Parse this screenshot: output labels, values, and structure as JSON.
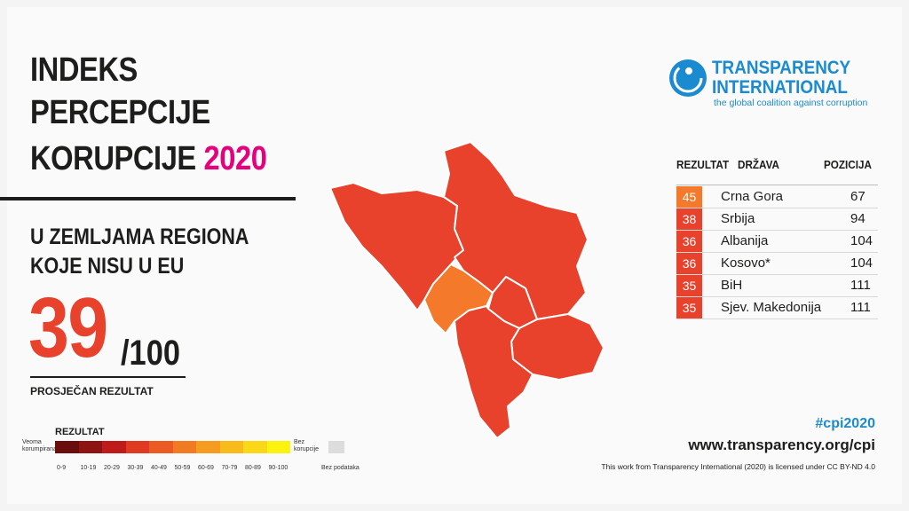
{
  "header": {
    "title_lines": [
      "INDEKS",
      "PERCEPCIJE",
      "KORUPCIJE"
    ],
    "year": "2020",
    "subtitle_lines": [
      "U ZEMLJAMA REGIONA",
      "KOJE NISU U EU"
    ],
    "score": "39",
    "score_max": "/100",
    "score_label": "PROSJEČAN REZULTAT"
  },
  "legend": {
    "title": "REZULTAT",
    "low": [
      "Veoma",
      "korumpirana"
    ],
    "high": [
      "Bez",
      "korupcije"
    ],
    "ranges": [
      "0-9",
      "10-19",
      "20-29",
      "30-39",
      "40-49",
      "50-59",
      "60-69",
      "70-79",
      "80-89",
      "90-100"
    ],
    "no_data": "Bez podataka"
  },
  "logo": {
    "line1": "TRANSPARENCY",
    "line2": "INTERNATIONAL",
    "tagline": "the global coalition against corruption"
  },
  "table": {
    "headers": [
      "REZULTAT",
      "DRŽAVA",
      "POZICIJA"
    ],
    "rows": [
      [
        "45",
        "Crna Gora",
        "67"
      ],
      [
        "38",
        "Srbija",
        "94"
      ],
      [
        "36",
        "Albanija",
        "104"
      ],
      [
        "36",
        "Kosovo*",
        "104"
      ],
      [
        "35",
        "BiH",
        "111"
      ],
      [
        "35",
        "Sjev. Makedonija",
        "111"
      ]
    ]
  },
  "footer": {
    "hashtag": "#cpi2020",
    "url": "www.transparency.org/cpi",
    "license": "This work from Transparency International (2020) is licensed under CC BY-ND 4.0"
  }
}
